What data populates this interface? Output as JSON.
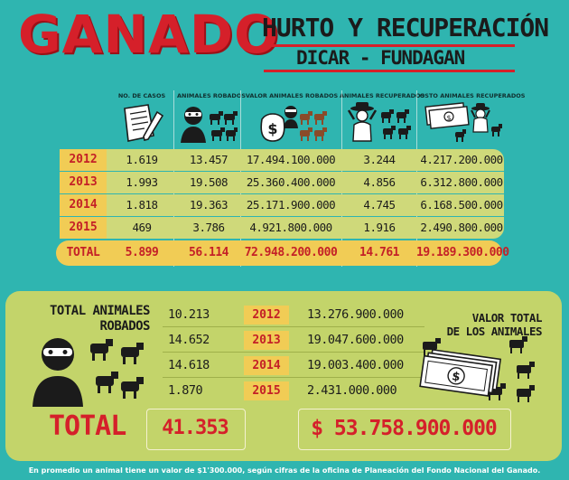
{
  "header": {
    "title": "GANADO",
    "subtitle": "HURTO Y RECUPERACIÓN",
    "source": "DICAR - FUNDAGAN"
  },
  "columns": [
    "No. DE CASOS",
    "ANIMALES ROBADOS",
    "VALOR ANIMALES ROBADOS",
    "ANIMALES RECUPERADOS",
    "COSTO ANIMALES RECUPERADOS"
  ],
  "rows": [
    {
      "year": "2012",
      "casos": "1.619",
      "robados": "13.457",
      "valor_robados": "17.494.100.000",
      "recuperados": "3.244",
      "costo_recuperados": "4.217.200.000"
    },
    {
      "year": "2013",
      "casos": "1.993",
      "robados": "19.508",
      "valor_robados": "25.360.400.000",
      "recuperados": "4.856",
      "costo_recuperados": "6.312.800.000"
    },
    {
      "year": "2014",
      "casos": "1.818",
      "robados": "19.363",
      "valor_robados": "25.171.900.000",
      "recuperados": "4.745",
      "costo_recuperados": "6.168.500.000"
    },
    {
      "year": "2015",
      "casos": "469",
      "robados": "3.786",
      "valor_robados": "4.921.800.000",
      "recuperados": "1.916",
      "costo_recuperados": "2.490.800.000"
    }
  ],
  "total_row": {
    "label": "TOTAL",
    "casos": "5.899",
    "robados": "56.114",
    "valor_robados": "72.948.200.000",
    "recuperados": "14.761",
    "costo_recuperados": "19.189.300.000"
  },
  "bottom": {
    "left_title": "TOTAL ANIMALES ROBADOS",
    "left_title_1": "TOTAL ANIMALES",
    "left_title_2": "ROBADOS",
    "right_title_1": "VALOR TOTAL",
    "right_title_2": "DE LOS ANIMALES",
    "rows": [
      {
        "animales": "10.213",
        "year": "2012",
        "valor": "13.276.900.000"
      },
      {
        "animales": "14.652",
        "year": "2013",
        "valor": "19.047.600.000"
      },
      {
        "animales": "14.618",
        "year": "2014",
        "valor": "19.003.400.000"
      },
      {
        "animales": "1.870",
        "year": "2015",
        "valor": "2.431.000.000"
      }
    ],
    "total_label": "TOTAL",
    "total_animales": "41.353",
    "total_valor": "$ 53.758.900.000"
  },
  "footnote": "En promedio un animal tiene un valor de $1'300.000, según cifras de la oficina de Planeación del Fondo Nacional del Ganado.",
  "colors": {
    "background": "#2fb5b0",
    "red": "#d5202a",
    "yellow": "#f1cc55",
    "olive": "#c3d46a"
  },
  "icons": [
    "document-pen-icon",
    "thief-icon",
    "cow-icon",
    "money-bag-icon",
    "farmer-icon",
    "banknote-icon"
  ]
}
